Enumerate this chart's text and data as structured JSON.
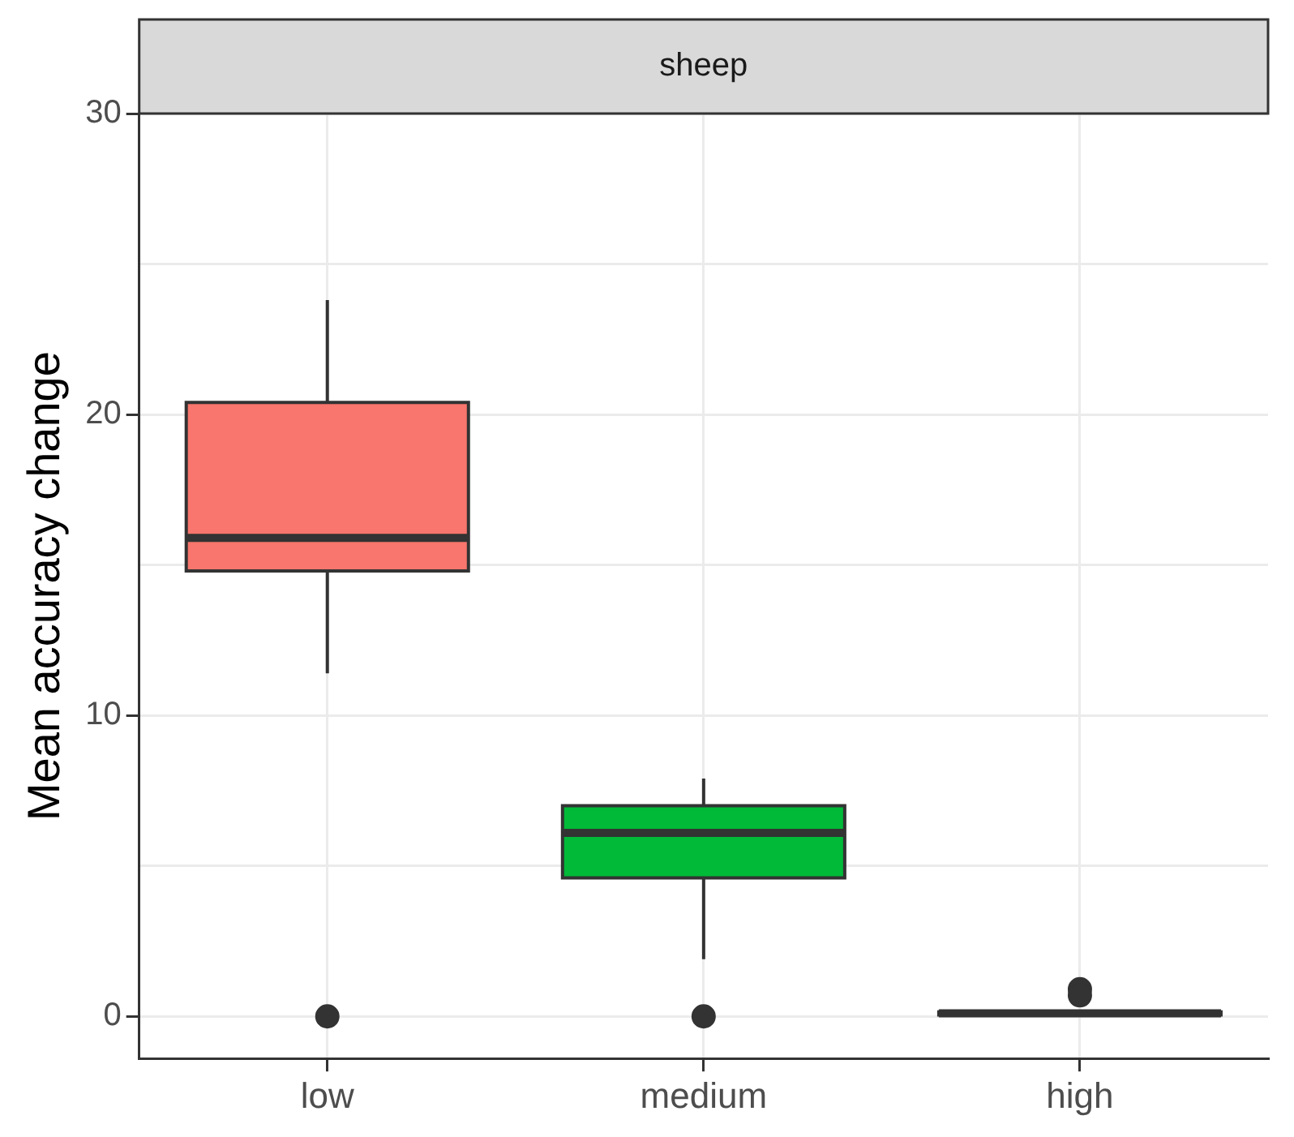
{
  "chart_data": {
    "type": "box",
    "title": "sheep",
    "ylabel": "Mean accuracy change",
    "categories": [
      "low",
      "medium",
      "high"
    ],
    "colors": [
      "#f8766d",
      "#00ba38",
      "#619cff"
    ],
    "boxes": [
      {
        "low": 11.4,
        "q1": 14.8,
        "median": 15.9,
        "q3": 20.4,
        "high": 23.8,
        "outliers": [
          0
        ]
      },
      {
        "low": 1.9,
        "q1": 4.6,
        "median": 6.1,
        "q3": 7.0,
        "high": 7.9,
        "outliers": [
          0
        ]
      },
      {
        "low": 0,
        "q1": 0.05,
        "median": 0.1,
        "q3": 0.15,
        "high": 0.2,
        "outliers": [
          0.9,
          0.7
        ]
      }
    ],
    "ylim": [
      -1.4,
      30
    ],
    "yticks": [
      0,
      {
        "value": 5,
        "label": null
      },
      10,
      {
        "value": 15,
        "label": null
      },
      20,
      {
        "value": 25,
        "label": null
      },
      30
    ],
    "grid": true,
    "legend": false
  }
}
